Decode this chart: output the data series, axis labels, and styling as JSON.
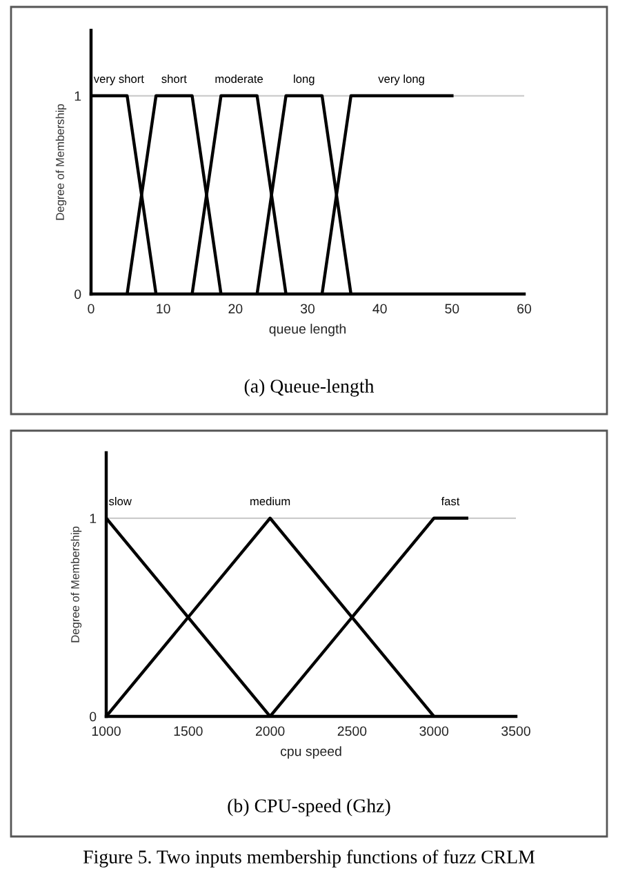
{
  "chart_data": [
    {
      "type": "line",
      "xlabel": "queue length",
      "ylabel": "Degree of Membership",
      "xlim": [
        0,
        60
      ],
      "xticks": [
        0,
        10,
        20,
        30,
        40,
        50,
        60
      ],
      "ylim": [
        0,
        1.33
      ],
      "yticks": [
        0,
        1
      ],
      "grid": "y",
      "legend": false,
      "marker": "none",
      "line_style": "solid",
      "series": [
        {
          "name": "very short",
          "color": "#000000",
          "x": [
            0,
            5,
            9
          ],
          "values": [
            1,
            1,
            0
          ]
        },
        {
          "name": "short",
          "color": "#000000",
          "x": [
            5,
            9,
            14,
            18
          ],
          "values": [
            0,
            1,
            1,
            0
          ]
        },
        {
          "name": "moderate",
          "color": "#000000",
          "x": [
            14,
            18,
            23,
            27
          ],
          "values": [
            0,
            1,
            1,
            0
          ]
        },
        {
          "name": "long",
          "color": "#000000",
          "x": [
            23,
            27,
            32,
            36
          ],
          "values": [
            0,
            1,
            1,
            0
          ]
        },
        {
          "name": "very long",
          "color": "#000000",
          "x": [
            32,
            36,
            50
          ],
          "values": [
            0,
            1,
            1
          ]
        }
      ],
      "annotations": [
        "(a) Queue-length"
      ]
    },
    {
      "type": "line",
      "xlabel": "cpu speed",
      "ylabel": "Degree of Membership",
      "xlim": [
        1000,
        3500
      ],
      "xticks": [
        1000,
        1500,
        2000,
        2500,
        3000,
        3500
      ],
      "ylim": [
        0,
        1.33
      ],
      "yticks": [
        0,
        1
      ],
      "grid": "y",
      "legend": false,
      "marker": "none",
      "line_style": "solid",
      "series": [
        {
          "name": "slow",
          "color": "#000000",
          "x": [
            1000,
            2000
          ],
          "values": [
            1,
            0
          ]
        },
        {
          "name": "medium",
          "color": "#000000",
          "x": [
            1000,
            2000,
            3000
          ],
          "values": [
            0,
            1,
            0
          ]
        },
        {
          "name": "fast",
          "color": "#000000",
          "x": [
            2000,
            3000,
            3200
          ],
          "values": [
            0,
            1,
            1
          ]
        }
      ],
      "annotations": [
        "(b) CPU-speed (Ghz)",
        "Figure 5. Two inputs membership functions of fuzz CRLM"
      ]
    }
  ]
}
